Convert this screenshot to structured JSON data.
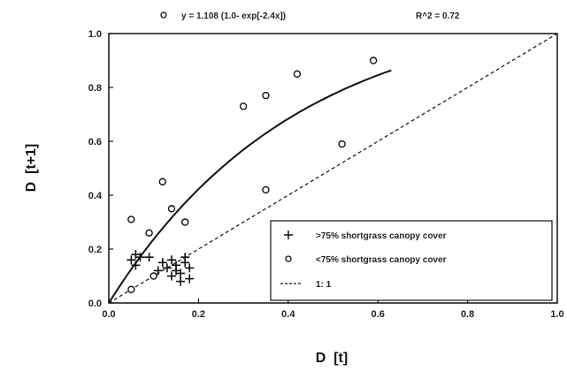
{
  "chart_data": {
    "type": "scatter",
    "title": "",
    "equation_text": "y = 1.108 (1.0- exp[-2.4x])",
    "r2_text": "R^2 = 0.72",
    "xlabel": "D  [t]",
    "ylabel": "D  [t+1]",
    "xlim": [
      0.0,
      1.0
    ],
    "ylim": [
      0.0,
      1.0
    ],
    "x_ticks": [
      "0.0",
      "0.2",
      "0.4",
      "0.6",
      "0.8",
      "1.0"
    ],
    "y_ticks": [
      "0.0",
      "0.2",
      "0.4",
      "0.6",
      "0.8",
      "1.0"
    ],
    "grid": false,
    "legend_position": "bottom-right",
    "series": [
      {
        "name": ">75% shortgrass canopy cover",
        "marker": "plus",
        "points": [
          [
            0.05,
            0.16
          ],
          [
            0.06,
            0.18
          ],
          [
            0.07,
            0.17
          ],
          [
            0.06,
            0.14
          ],
          [
            0.09,
            0.17
          ],
          [
            0.12,
            0.15
          ],
          [
            0.13,
            0.13
          ],
          [
            0.14,
            0.16
          ],
          [
            0.15,
            0.12
          ],
          [
            0.15,
            0.14
          ],
          [
            0.16,
            0.11
          ],
          [
            0.17,
            0.15
          ],
          [
            0.17,
            0.17
          ],
          [
            0.16,
            0.08
          ],
          [
            0.18,
            0.09
          ],
          [
            0.11,
            0.12
          ],
          [
            0.14,
            0.1
          ],
          [
            0.18,
            0.13
          ]
        ]
      },
      {
        "name": "<75% shortgrass canopy cover",
        "marker": "circle",
        "points": [
          [
            0.05,
            0.31
          ],
          [
            0.05,
            0.05
          ],
          [
            0.09,
            0.26
          ],
          [
            0.1,
            0.1
          ],
          [
            0.12,
            0.45
          ],
          [
            0.14,
            0.35
          ],
          [
            0.17,
            0.3
          ],
          [
            0.3,
            0.73
          ],
          [
            0.35,
            0.42
          ],
          [
            0.35,
            0.77
          ],
          [
            0.42,
            0.85
          ],
          [
            0.52,
            0.59
          ],
          [
            0.59,
            0.9
          ]
        ]
      },
      {
        "name": "fit",
        "type": "curve",
        "a": 1.108,
        "b": 2.4,
        "x_range": [
          0.0,
          0.63
        ]
      },
      {
        "name": "1: 1",
        "type": "reference_line",
        "style": "dashed",
        "points": [
          [
            0.0,
            0.0
          ],
          [
            1.0,
            1.0
          ]
        ]
      }
    ]
  }
}
